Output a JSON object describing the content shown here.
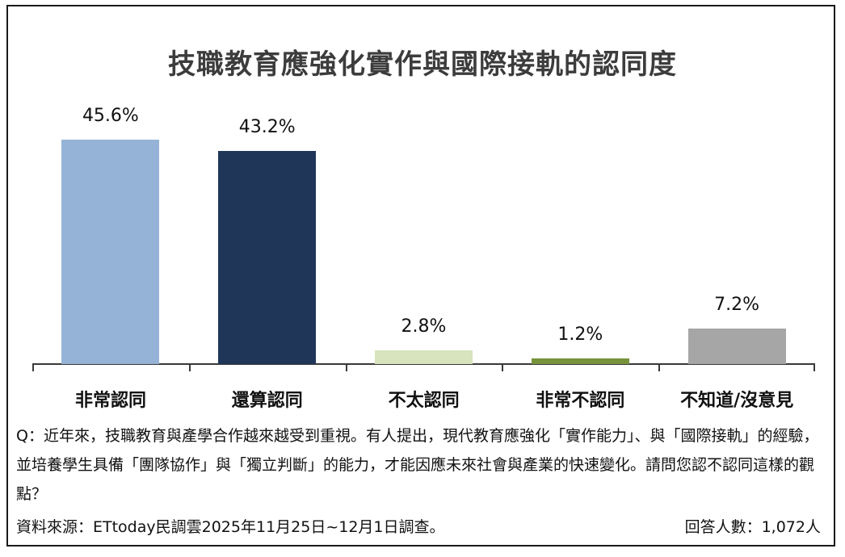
{
  "title": "技職教育應強化實作與國際接軌的認同度",
  "chart_data": {
    "type": "bar",
    "title": "技職教育應強化實作與國際接軌的認同度",
    "categories": [
      "非常認同",
      "還算認同",
      "不太認同",
      "非常不認同",
      "不知道/沒意見"
    ],
    "values": [
      45.6,
      43.2,
      2.8,
      1.2,
      7.2
    ],
    "value_labels": [
      "45.6%",
      "43.2%",
      "2.8%",
      "1.2%",
      "7.2%"
    ],
    "colors": [
      "#95B3D7",
      "#1F3659",
      "#D7E4BD",
      "#77933C",
      "#A6A6A6"
    ],
    "xlabel": "",
    "ylabel": "",
    "unit": "%",
    "grid": false,
    "legend": false
  },
  "question": "Q：近年來，技職教育與產學合作越來越受到重視。有人提出，現代教育應強化「實作能力」、與「國際接軌」的經驗，並培養學生具備「團隊協作」與「獨立判斷」的能力，才能因應未來社會與產業的快速變化。請問您認不認同這樣的觀點？",
  "footer": {
    "source": "資料來源：ETtoday民調雲2025年11月25日~12月1日調查。",
    "respondents": "回答人數：1,072人"
  }
}
